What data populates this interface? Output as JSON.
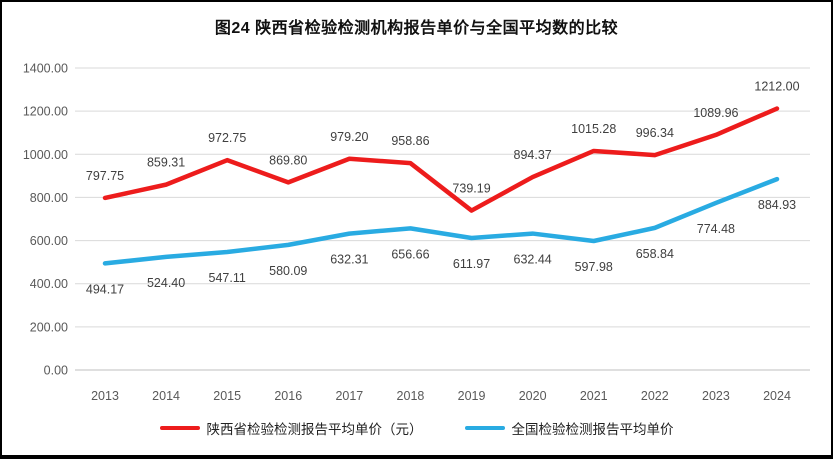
{
  "title": "图24 陕西省检验检测机构报告单价与全国平均数的比较",
  "colors": {
    "shaanxi_series": "#ed1c1c",
    "national_series": "#29abe2",
    "gridline": "#d9d9d9",
    "axis_line": "#bfbfbf",
    "tick_label": "#595959",
    "data_label": "#404040",
    "frame_border": "#000000",
    "background": "#ffffff"
  },
  "chart_data": {
    "type": "line",
    "title": "图24 陕西省检验检测机构报告单价与全国平均数的比较",
    "categories": [
      "2013",
      "2014",
      "2015",
      "2016",
      "2017",
      "2018",
      "2019",
      "2020",
      "2021",
      "2022",
      "2023",
      "2024"
    ],
    "series": [
      {
        "name": "陕西省检验检测报告平均单价（元）",
        "color": "#ed1c1c",
        "label_position": "above",
        "values": [
          797.75,
          859.31,
          972.75,
          869.8,
          979.2,
          958.86,
          739.19,
          894.37,
          1015.28,
          996.34,
          1089.96,
          1212.0
        ]
      },
      {
        "name": "全国检验检测报告平均单价",
        "color": "#29abe2",
        "label_position": "below",
        "values": [
          494.17,
          524.4,
          547.11,
          580.09,
          632.31,
          656.66,
          611.97,
          632.44,
          597.98,
          658.84,
          774.48,
          884.93
        ]
      }
    ],
    "xlabel": "",
    "ylabel": "",
    "ylim": [
      0,
      1400
    ],
    "ytick_step": 200,
    "ytick_labels": [
      "0.00",
      "200.00",
      "400.00",
      "600.00",
      "800.00",
      "1000.00",
      "1200.00",
      "1400.00"
    ],
    "grid": true,
    "legend_position": "bottom",
    "data_labels_shown": true
  }
}
